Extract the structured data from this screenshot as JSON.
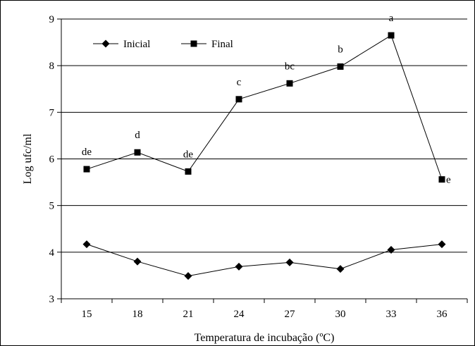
{
  "chart_data": {
    "type": "line",
    "xlabel": "Temperatura de incubação (ºC)",
    "ylabel": "Log ufc/ml",
    "categories": [
      "15",
      "18",
      "21",
      "24",
      "27",
      "30",
      "33",
      "36"
    ],
    "ylim": [
      3,
      9
    ],
    "yticks": [
      3,
      4,
      5,
      6,
      7,
      8,
      9
    ],
    "grid": "horizontal",
    "legend_position": "top-left",
    "series": [
      {
        "name": "Inicial",
        "marker": "diamond",
        "values": [
          4.17,
          3.8,
          3.49,
          3.69,
          3.78,
          3.64,
          4.05,
          4.17
        ],
        "point_labels": [
          "",
          "",
          "",
          "",
          "",
          "",
          "",
          ""
        ]
      },
      {
        "name": "Final",
        "marker": "square",
        "values": [
          5.78,
          6.14,
          5.73,
          7.28,
          7.62,
          7.98,
          8.65,
          5.56
        ],
        "point_labels": [
          "de",
          "d",
          "de",
          "c",
          "bc",
          "b",
          "a",
          "e"
        ]
      }
    ]
  },
  "colors": {
    "line": "#000000",
    "grid": "#000000",
    "background": "#ffffff"
  }
}
